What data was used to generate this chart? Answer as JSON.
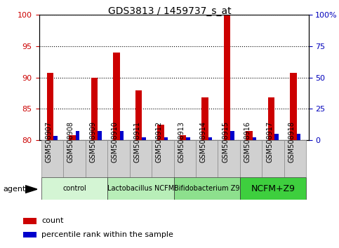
{
  "title": "GDS3813 / 1459737_s_at",
  "samples": [
    "GSM508907",
    "GSM508908",
    "GSM508909",
    "GSM508910",
    "GSM508911",
    "GSM508912",
    "GSM508913",
    "GSM508914",
    "GSM508915",
    "GSM508916",
    "GSM508917",
    "GSM508918"
  ],
  "count_values": [
    90.7,
    80.8,
    90.0,
    94.0,
    88.0,
    82.5,
    80.8,
    86.8,
    100.0,
    81.5,
    86.8,
    90.7
  ],
  "percentile_values": [
    80.7,
    81.5,
    81.5,
    81.5,
    80.5,
    80.5,
    80.4,
    80.5,
    81.5,
    80.5,
    81.0,
    81.0
  ],
  "ylim": [
    80,
    100
  ],
  "yticks_left": [
    80,
    85,
    90,
    95,
    100
  ],
  "yticks_right": [
    0,
    25,
    50,
    75,
    100
  ],
  "groups": [
    {
      "label": "control",
      "start": 0,
      "end": 3,
      "color": "#d4f5d4"
    },
    {
      "label": "Lactobacillus NCFM",
      "start": 3,
      "end": 6,
      "color": "#b8eeb8"
    },
    {
      "label": "Bifidobacterium Z9",
      "start": 6,
      "end": 9,
      "color": "#8de08d"
    },
    {
      "label": "NCFM+Z9",
      "start": 9,
      "end": 12,
      "color": "#3ecf3e"
    }
  ],
  "bar_width": 0.3,
  "blue_bar_width": 0.18,
  "count_color": "#cc0000",
  "percentile_color": "#0000cc",
  "grid_color": "#000000",
  "sample_label_size": 7,
  "group_label_fontsize_small": 7,
  "group_label_fontsize_large": 9,
  "legend_label_size": 8,
  "title_fontsize": 10,
  "left_axis_color": "#cc0000",
  "right_axis_color": "#0000bb"
}
